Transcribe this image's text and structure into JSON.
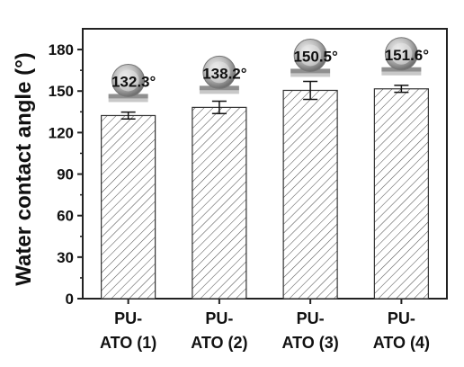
{
  "chart_data": {
    "type": "bar",
    "title": "",
    "xlabel": "",
    "ylabel": "Water contact angle (°)",
    "ylim": [
      0,
      195
    ],
    "yticks": [
      0,
      30,
      60,
      90,
      120,
      150,
      180
    ],
    "grid": false,
    "legend": "none",
    "bar_pattern": "diagonal-hatch",
    "bar_fill": "#ffffff",
    "bar_stroke": "#333333",
    "inset_images": "droplet-on-surface",
    "categories": [
      {
        "line1": "PU-",
        "line2": "ATO (1)"
      },
      {
        "line1": "PU-",
        "line2": "ATO (2)"
      },
      {
        "line1": "PU-",
        "line2": "ATO (3)"
      },
      {
        "line1": "PU-",
        "line2": "ATO (4)"
      }
    ],
    "values": [
      132.3,
      138.2,
      150.5,
      151.6
    ],
    "errors": [
      2.5,
      4.5,
      6.5,
      2.5
    ],
    "data_labels": [
      "132.3°",
      "138.2°",
      "150.5°",
      "151.6°"
    ]
  }
}
